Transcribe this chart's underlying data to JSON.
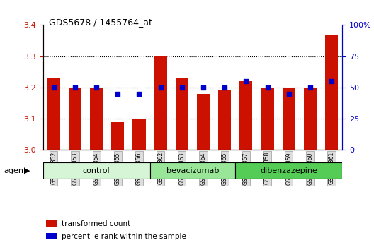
{
  "title": "GDS5678 / 1455764_at",
  "samples": [
    "GSM967852",
    "GSM967853",
    "GSM967854",
    "GSM967855",
    "GSM967856",
    "GSM967862",
    "GSM967863",
    "GSM967864",
    "GSM967865",
    "GSM967857",
    "GSM967858",
    "GSM967859",
    "GSM967860",
    "GSM967861"
  ],
  "red_values": [
    3.23,
    3.2,
    3.2,
    3.09,
    3.1,
    3.3,
    3.23,
    3.18,
    3.19,
    3.22,
    3.2,
    3.2,
    3.2,
    3.37
  ],
  "blue_values": [
    50,
    50,
    50,
    45,
    45,
    50,
    50,
    50,
    50,
    55,
    50,
    45,
    50,
    55
  ],
  "groups": [
    {
      "label": "control",
      "start": 0,
      "end": 5,
      "color": "#d6f5d6"
    },
    {
      "label": "bevacizumab",
      "start": 5,
      "end": 9,
      "color": "#99e699"
    },
    {
      "label": "dibenzazepine",
      "start": 9,
      "end": 14,
      "color": "#55cc55"
    }
  ],
  "ylim_left": [
    3.0,
    3.4
  ],
  "ylim_right": [
    0,
    100
  ],
  "ylabel_left_ticks": [
    3.0,
    3.1,
    3.2,
    3.3,
    3.4
  ],
  "ylabel_right_ticks": [
    0,
    25,
    50,
    75,
    100
  ],
  "ylabel_right_labels": [
    "0",
    "25",
    "50",
    "75",
    "100%"
  ],
  "bar_color": "#cc1100",
  "dot_color": "#0000cc",
  "bar_width": 0.6,
  "grid_dotted_lines": [
    3.1,
    3.2,
    3.3
  ],
  "agent_label": "agent",
  "legend_items": [
    {
      "color": "#cc1100",
      "label": "transformed count"
    },
    {
      "color": "#0000cc",
      "label": "percentile rank within the sample"
    }
  ]
}
